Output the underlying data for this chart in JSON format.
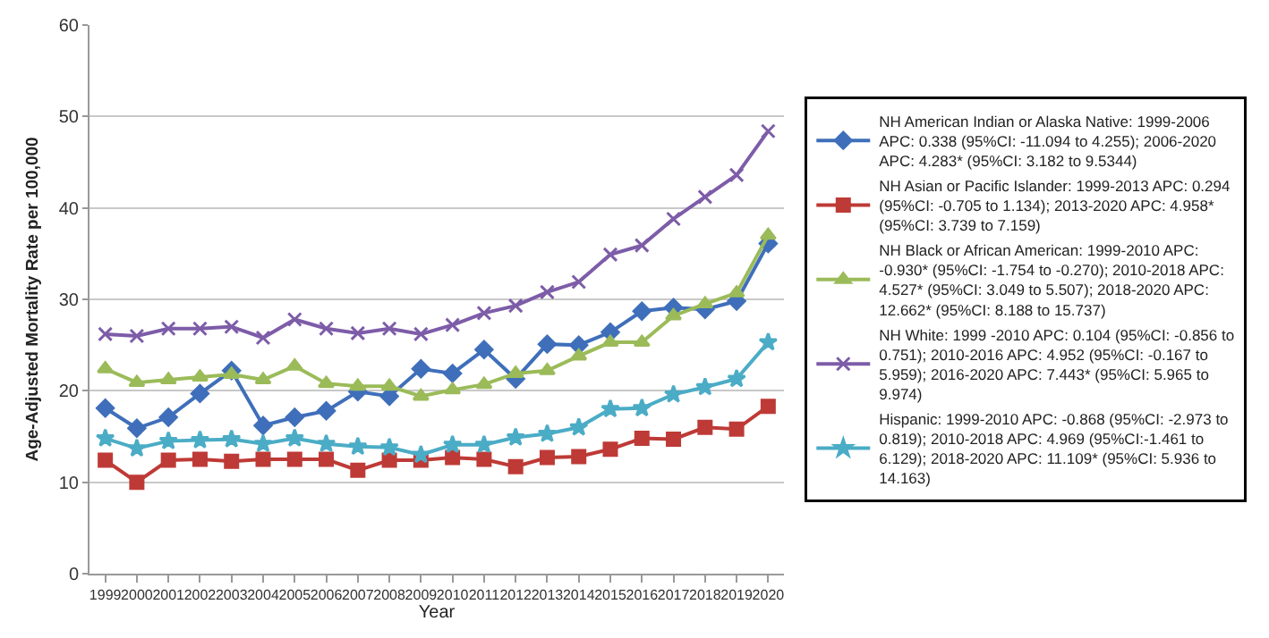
{
  "chart_data": {
    "type": "line",
    "xlabel": "Year",
    "ylabel": "Age-Adjusted Mortality Rate per 100,000",
    "categories": [
      "1999",
      "2000",
      "2001",
      "2002",
      "2003",
      "2004",
      "2005",
      "2006",
      "2007",
      "2008",
      "2009",
      "2010",
      "2011",
      "2012",
      "2013",
      "2014",
      "2015",
      "2016",
      "2017",
      "2018",
      "2019",
      "2020"
    ],
    "ylim": [
      0,
      60
    ],
    "yticks": [
      0,
      10,
      20,
      30,
      40,
      50,
      60
    ],
    "grid": "y",
    "legend": "right",
    "series": [
      {
        "name": "NH American Indian or Alaska Native: 1999-2006 APC: 0.338 (95%CI: -11.094 to 4.255); 2006-2020 APC: 4.283* (95%CI: 3.182 to 9.5344)",
        "color": "#3f6fba",
        "marker": "diamond",
        "values": [
          18.1,
          15.9,
          17.1,
          19.7,
          22.2,
          16.2,
          17.1,
          17.8,
          19.9,
          19.4,
          22.4,
          21.9,
          24.5,
          21.3,
          25.1,
          25.0,
          26.4,
          28.7,
          29.1,
          28.9,
          29.8,
          36.1
        ]
      },
      {
        "name": "NH Asian or Pacific Islander: 1999-2013 APC: 0.294 (95%CI: -0.705 to 1.134); 2013-2020 APC: 4.958* (95%CI: 3.739 to 7.159)",
        "color": "#be3a36",
        "marker": "square",
        "values": [
          12.4,
          10.0,
          12.4,
          12.5,
          12.3,
          12.5,
          12.5,
          12.5,
          11.3,
          12.4,
          12.4,
          12.7,
          12.5,
          11.7,
          12.7,
          12.8,
          13.6,
          14.8,
          14.7,
          16.0,
          15.8,
          18.3
        ]
      },
      {
        "name": "NH Black or African American: 1999-2010 APC: -0.930* (95%CI: -1.754 to -0.270); 2010-2018 APC: 4.527* (95%CI: 3.049 to 5.507); 2018-2020 APC: 12.662* (95%CI: 8.188 to 15.737)",
        "color": "#9bbb59",
        "marker": "triangle",
        "values": [
          22.4,
          20.9,
          21.2,
          21.5,
          21.8,
          21.2,
          22.7,
          20.8,
          20.5,
          20.5,
          19.4,
          20.1,
          20.7,
          21.9,
          22.2,
          23.8,
          25.3,
          25.3,
          28.2,
          29.5,
          30.7,
          37.0
        ]
      },
      {
        "name": "NH White: 1999 -2010 APC: 0.104 (95%CI: -0.856 to 0.751); 2010-2016 APC: 4.952 (95%CI: -0.167 to 5.959); 2016-2020 APC: 7.443* (95%CI: 5.965 to 9.974)",
        "color": "#7d5ca8",
        "marker": "cross",
        "values": [
          26.2,
          26.0,
          26.8,
          26.8,
          27.0,
          25.8,
          27.8,
          26.8,
          26.3,
          26.8,
          26.2,
          27.2,
          28.5,
          29.3,
          30.8,
          31.9,
          34.9,
          35.9,
          38.8,
          41.2,
          43.6,
          48.4
        ]
      },
      {
        "name": "Hispanic: 1999-2010 APC: -0.868 (95%CI: -2.973 to 0.819); 2010-2018 APC: 4.969 (95%CI:-1.461 to 6.129); 2018-2020 APC: 11.109* (95%CI: 5.936 to 14.163)",
        "color": "#4bacc6",
        "marker": "star",
        "values": [
          14.8,
          13.7,
          14.5,
          14.6,
          14.7,
          14.2,
          14.8,
          14.2,
          13.9,
          13.8,
          13.0,
          14.1,
          14.1,
          14.9,
          15.3,
          16.0,
          18.0,
          18.1,
          19.6,
          20.4,
          21.3,
          25.3
        ]
      }
    ]
  }
}
